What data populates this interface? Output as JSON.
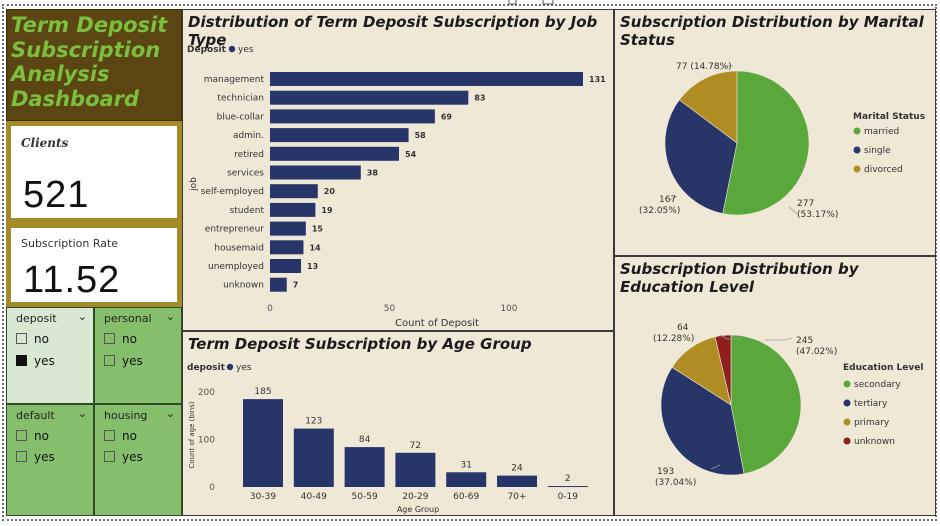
{
  "dashboard_title": "Term Deposit Subscription Analysis Dashboard",
  "kpis": {
    "clients_label": "Clients",
    "clients_value": "521",
    "rate_label": "Subscription Rate",
    "rate_value": "11.52"
  },
  "slicers": [
    {
      "title": "deposit",
      "options": [
        {
          "label": "no",
          "checked": false
        },
        {
          "label": "yes",
          "checked": true
        }
      ]
    },
    {
      "title": "personal",
      "options": [
        {
          "label": "no",
          "checked": false
        },
        {
          "label": "yes",
          "checked": false
        }
      ]
    },
    {
      "title": "default",
      "options": [
        {
          "label": "no",
          "checked": false
        },
        {
          "label": "yes",
          "checked": false
        }
      ]
    },
    {
      "title": "housing",
      "options": [
        {
          "label": "no",
          "checked": false
        },
        {
          "label": "yes",
          "checked": false
        }
      ]
    }
  ],
  "colors": {
    "navy": "#283569",
    "green": "#5aa83c",
    "gold": "#b08d23",
    "red": "#8f1e1e"
  },
  "chart_data": [
    {
      "type": "bar",
      "orientation": "horizontal",
      "title": "Distribution of Term Deposit Subscription by Job Type",
      "legend_title": "Deposit",
      "legend_items": [
        "yes"
      ],
      "xlabel": "Count of Deposit",
      "ylabel": "job",
      "xlim": [
        0,
        131
      ],
      "xticks": [
        0,
        50,
        100
      ],
      "categories": [
        "management",
        "technician",
        "blue-collar",
        "admin.",
        "retired",
        "services",
        "self-employed",
        "student",
        "entrepreneur",
        "housemaid",
        "unemployed",
        "unknown"
      ],
      "values": [
        131,
        83,
        69,
        58,
        54,
        38,
        20,
        19,
        15,
        14,
        13,
        7
      ]
    },
    {
      "type": "bar",
      "title": "Term Deposit Subscription by Age Group",
      "legend_title": "deposit",
      "legend_items": [
        "yes"
      ],
      "xlabel": "Age Group",
      "ylabel": "Count of age (bins)",
      "ylim": [
        0,
        200
      ],
      "yticks": [
        0,
        100,
        200
      ],
      "categories": [
        "30-39",
        "40-49",
        "50-59",
        "20-29",
        "60-69",
        "70+",
        "0-19"
      ],
      "values": [
        185,
        123,
        84,
        72,
        31,
        24,
        2
      ]
    },
    {
      "type": "pie",
      "title": "Subscription Distribution by Marital Status",
      "legend_title": "Marital Status",
      "labels": [
        "married",
        "single",
        "divorced"
      ],
      "values": [
        277,
        167,
        77
      ],
      "percent_labels": [
        "277 (53.17%)",
        "167 (32.05%)",
        "77 (14.78%)"
      ]
    },
    {
      "type": "pie",
      "title": "Subscription Distribution by Education Level",
      "legend_title": "Education Level",
      "labels": [
        "secondary",
        "tertiary",
        "primary",
        "unknown"
      ],
      "values": [
        245,
        193,
        64,
        19
      ],
      "percent_labels": [
        "245 (47.02%)",
        "193 (37.04%)",
        "64 (12.28%)",
        ""
      ]
    }
  ]
}
